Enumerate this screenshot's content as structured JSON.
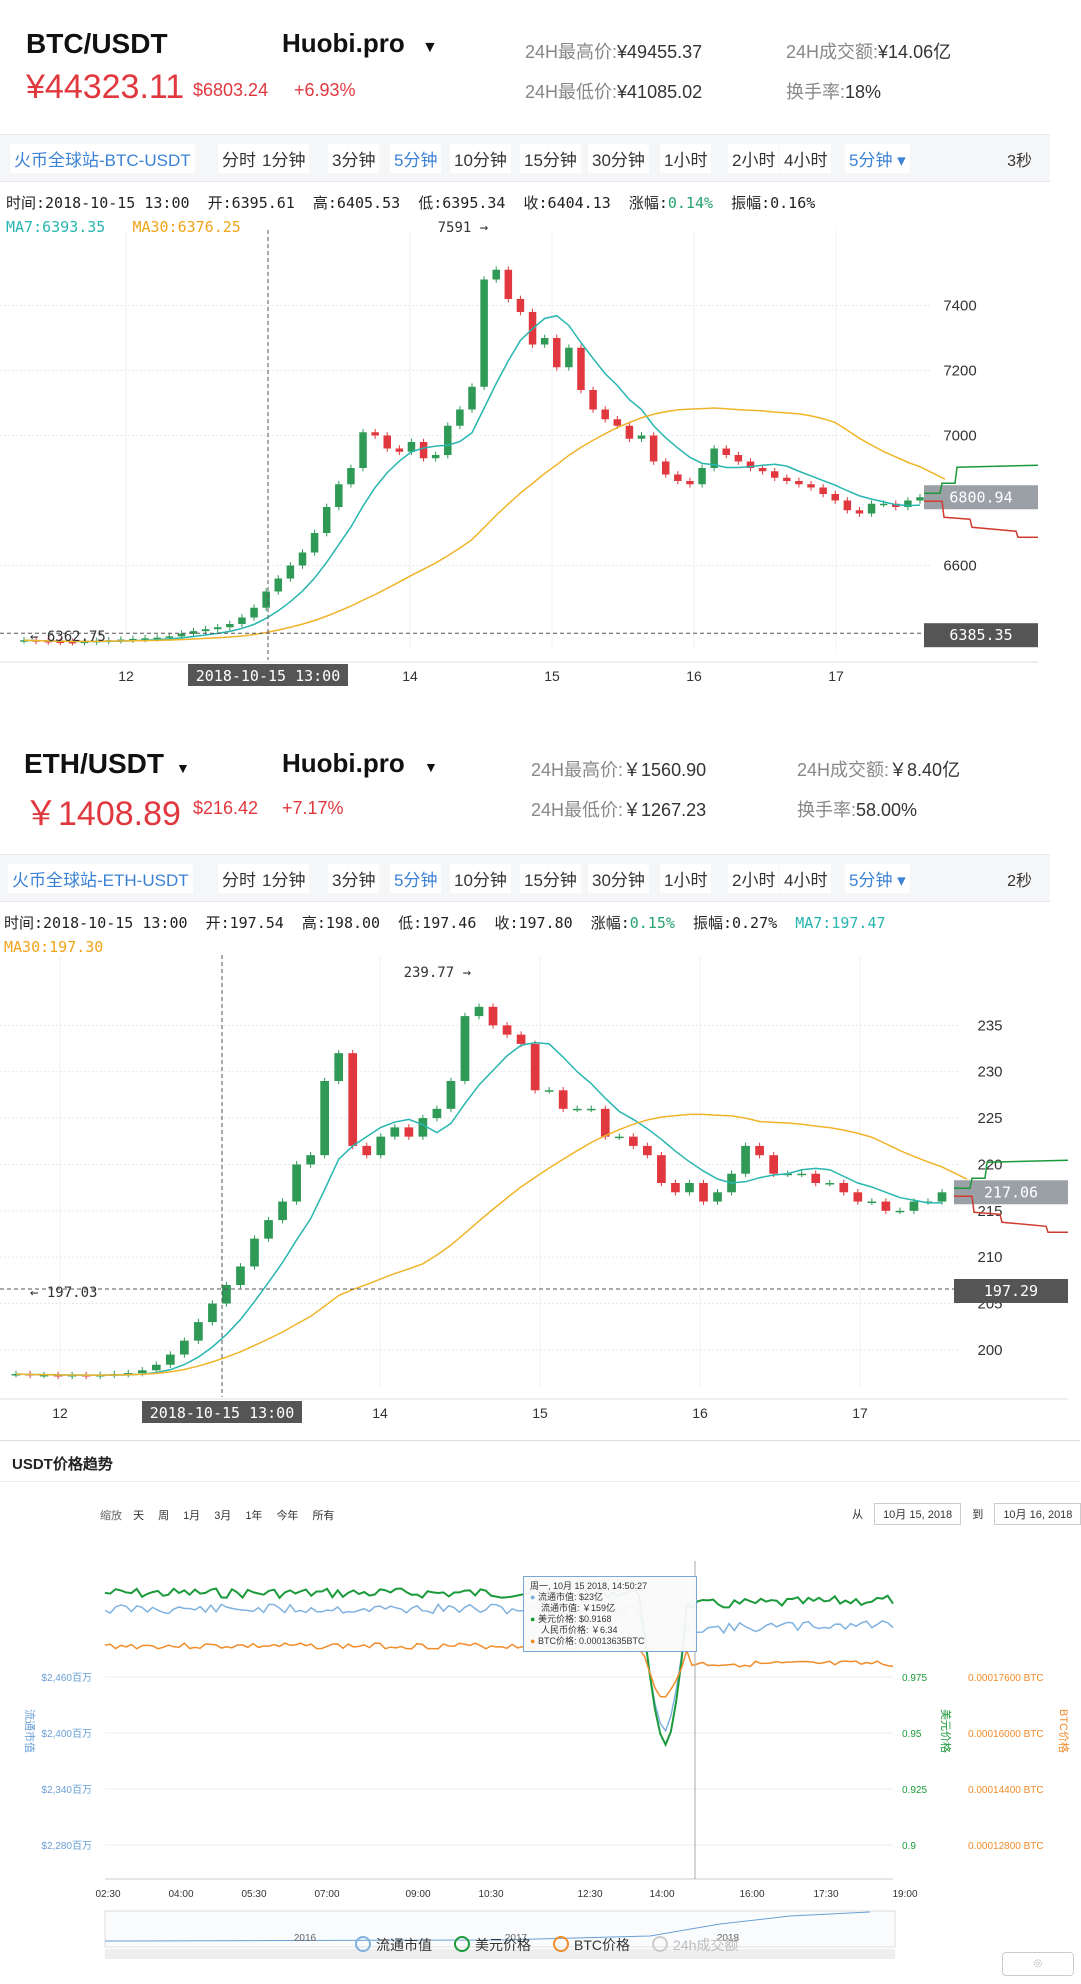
{
  "btc": {
    "pair": "BTC/USDT",
    "exchange": "Huobi.pro",
    "price": "¥44323.11",
    "change_usd": "$6803.24",
    "change_pct": "+6.93%",
    "high_label": "24H最高价:",
    "high": "¥49455.37",
    "low_label": "24H最低价:",
    "low": "¥41085.02",
    "vol_label": "24H成交额:",
    "vol": "¥14.06亿",
    "turn_label": "换手率:",
    "turn": "18%",
    "market_tab": "火币全球站-BTC-USDT",
    "intervals": [
      "分时",
      "1分钟",
      "3分钟",
      "5分钟",
      "10分钟",
      "15分钟",
      "30分钟",
      "1小时",
      "2小时",
      "4小时",
      "5分钟"
    ],
    "active_interval": 3,
    "speed": "3秒",
    "info": {
      "time": "时间:2018-10-15 13:00",
      "open": "开:6395.61",
      "high": "高:6405.53",
      "low": "低:6395.34",
      "close": "收:6404.13",
      "amp_label": "涨幅:",
      "amp": "0.14%",
      "swing": "振幅:0.16%",
      "ma7": "MA7:6393.35",
      "ma30": "MA30:6376.25"
    }
  },
  "eth": {
    "pair": "ETH/USDT",
    "exchange": "Huobi.pro",
    "price": "￥1408.89",
    "change_usd": "$216.42",
    "change_pct": "+7.17%",
    "high_label": "24H最高价:",
    "high": "￥1560.90",
    "low_label": "24H最低价:",
    "low": "￥1267.23",
    "vol_label": "24H成交额:",
    "vol": "￥8.40亿",
    "turn_label": "换手率:",
    "turn": "58.00%",
    "market_tab": "火币全球站-ETH-USDT",
    "intervals": [
      "分时",
      "1分钟",
      "3分钟",
      "5分钟",
      "10分钟",
      "15分钟",
      "30分钟",
      "1小时",
      "2小时",
      "4小时",
      "5分钟"
    ],
    "active_interval": 3,
    "speed": "2秒",
    "info": {
      "time": "时间:2018-10-15 13:00",
      "open": "开:197.54",
      "high": "高:198.00",
      "low": "低:197.46",
      "close": "收:197.80",
      "amp_label": "涨幅:",
      "amp": "0.15%",
      "swing": "振幅:0.27%",
      "ma7": "MA7:197.47",
      "ma30": "MA30:197.30"
    }
  },
  "usdt": {
    "title": "USDT价格趋势",
    "zoom_label": "缩放",
    "zoom_buttons": [
      "天",
      "周",
      "1月",
      "3月",
      "1年",
      "今年",
      "所有"
    ],
    "from_label": "从",
    "from_date": "10月 15, 2018",
    "to_label": "到",
    "to_date": "10月 16, 2018",
    "tooltip": {
      "date": "周一, 10月 15 2018, 14:50:27",
      "l1": "流通市值: $23亿",
      "l2": "流通市值: ￥159亿",
      "l3": "美元价格: $0.9168",
      "l4": "人民币价格: ￥6.34",
      "l5": "BTC价格: 0.00013635BTC"
    },
    "left_axis_title": "流通市值",
    "right_axis_title1": "美元价格",
    "right_axis_title2": "BTC价格",
    "legend": [
      "流通市值",
      "美元价格",
      "BTC价格",
      "24h成交额"
    ],
    "navigator_years": [
      "2016",
      "2017",
      "2018"
    ]
  },
  "colors": {
    "up": "#e0383e",
    "down": "#2e9a56",
    "ma7": "#27b6b0",
    "ma30": "#f0b429",
    "blue": "#3b82d6"
  },
  "chart_data": [
    {
      "type": "candlestick",
      "title": "BTC/USDT",
      "x_ticks": [
        "12",
        "2018-10-15 13:00",
        "14",
        "15",
        "16",
        "17"
      ],
      "y_ticks": [
        6600,
        7000,
        7200,
        7400
      ],
      "ylim": [
        6340,
        7620
      ],
      "marks": {
        "high_label": "7591",
        "low_label": "6362.75",
        "current": "6800.94",
        "cursor": "6385.35"
      },
      "close": [
        6370,
        6368,
        6366,
        6365,
        6364,
        6366,
        6368,
        6370,
        6372,
        6374,
        6376,
        6378,
        6382,
        6390,
        6398,
        6404,
        6410,
        6420,
        6440,
        6470,
        6520,
        6560,
        6600,
        6640,
        6700,
        6780,
        6850,
        6900,
        7010,
        7000,
        6960,
        6950,
        6980,
        6930,
        6940,
        7030,
        7080,
        7150,
        7480,
        7510,
        7420,
        7380,
        7280,
        7300,
        7210,
        7270,
        7140,
        7080,
        7050,
        7030,
        6990,
        7000,
        6920,
        6880,
        6860,
        6850,
        6900,
        6960,
        6940,
        6920,
        6900,
        6890,
        6870,
        6860,
        6850,
        6840,
        6820,
        6800,
        6770,
        6760,
        6790,
        6790,
        6780,
        6800,
        6810
      ],
      "ma7_label": "MA7",
      "ma30_label": "MA30"
    },
    {
      "type": "candlestick",
      "title": "ETH/USDT",
      "x_ticks": [
        "12",
        "2018-10-15 13:00",
        "14",
        "15",
        "16",
        "17"
      ],
      "y_ticks": [
        200,
        205,
        210,
        215,
        220,
        225,
        230,
        235
      ],
      "ylim": [
        196,
        240
      ],
      "marks": {
        "high_label": "239.77",
        "low_label": "197.03",
        "current": "217.06",
        "cursor": "197.29"
      },
      "close": [
        197.4,
        197.3,
        197.3,
        197.2,
        197.3,
        197.2,
        197.3,
        197.4,
        197.5,
        197.8,
        198.4,
        199.5,
        201,
        203,
        205,
        207,
        209,
        212,
        214,
        216,
        220,
        221,
        229,
        232,
        222,
        221,
        223,
        224,
        223,
        225,
        226,
        229,
        236,
        237,
        235,
        234,
        233,
        228,
        228,
        226,
        226,
        226,
        223,
        223,
        222,
        221,
        218,
        217,
        218,
        216,
        217,
        219,
        222,
        221,
        219,
        219,
        219,
        218,
        218,
        217,
        216,
        216,
        215,
        215,
        216,
        216,
        217
      ],
      "ma7_label": "MA7",
      "ma30_label": "MA30"
    },
    {
      "type": "line",
      "title": "USDT价格趋势",
      "x": [
        "02:30",
        "04:00",
        "05:30",
        "07:00",
        "09:00",
        "10:30",
        "12:30",
        "14:00",
        "16:00",
        "17:30",
        "19:00"
      ],
      "left_ticks": [
        "$2,460百万",
        "$2,400百万",
        "$2,340百万",
        "$2,280百万"
      ],
      "right_ticks_usd": [
        "0.975",
        "0.95",
        "0.925",
        "0.9"
      ],
      "right_ticks_btc": [
        "0.00017600 BTC",
        "0.00016000 BTC",
        "0.00014400 BTC",
        "0.00012800 BTC"
      ],
      "series": [
        {
          "name": "流通市值",
          "color": "#7fb2e0"
        },
        {
          "name": "美元价格",
          "color": "#1a9a3a"
        },
        {
          "name": "BTC价格",
          "color": "#f08c2a"
        }
      ]
    }
  ]
}
